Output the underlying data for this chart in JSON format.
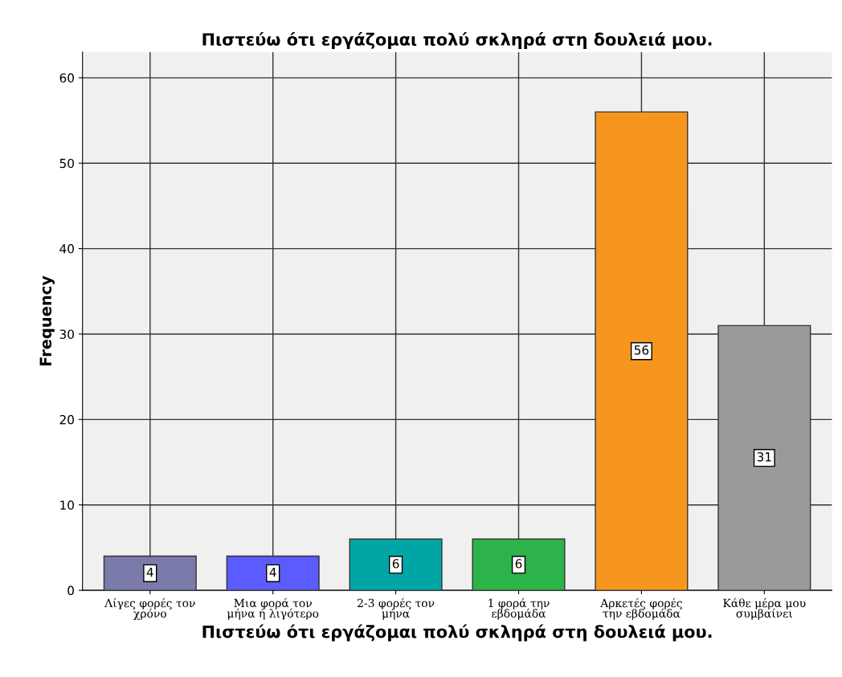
{
  "chart_data": {
    "type": "bar",
    "title": "Πιστεύω ότι εργάζομαι πολύ σκληρά στη δουλειά μου.",
    "xlabel": "Πιστεύω ότι εργάζομαι πολύ σκληρά στη δουλειά μου.",
    "ylabel": "Frequency",
    "categories": [
      "Λίγες φορές τον\nχρόνο",
      "Μια φορά τον\nμήνα ή λιγότερο",
      "2-3 φορές τον\nμήνα",
      "1 φορά την\nεβδομάδα",
      "Αρκετές φορές\nτην εβδομάδα",
      "Κάθε μέρα μου\nσυμβαίνει"
    ],
    "values": [
      4,
      4,
      6,
      6,
      56,
      31
    ],
    "colors": [
      "#7b7bab",
      "#5b5bff",
      "#00a6a6",
      "#2cb34a",
      "#f7961e",
      "#9a9a9a"
    ],
    "ylim": [
      0,
      63
    ],
    "yticks": [
      0,
      10,
      20,
      30,
      40,
      50,
      60
    ],
    "grid": true,
    "data_labels": true
  }
}
